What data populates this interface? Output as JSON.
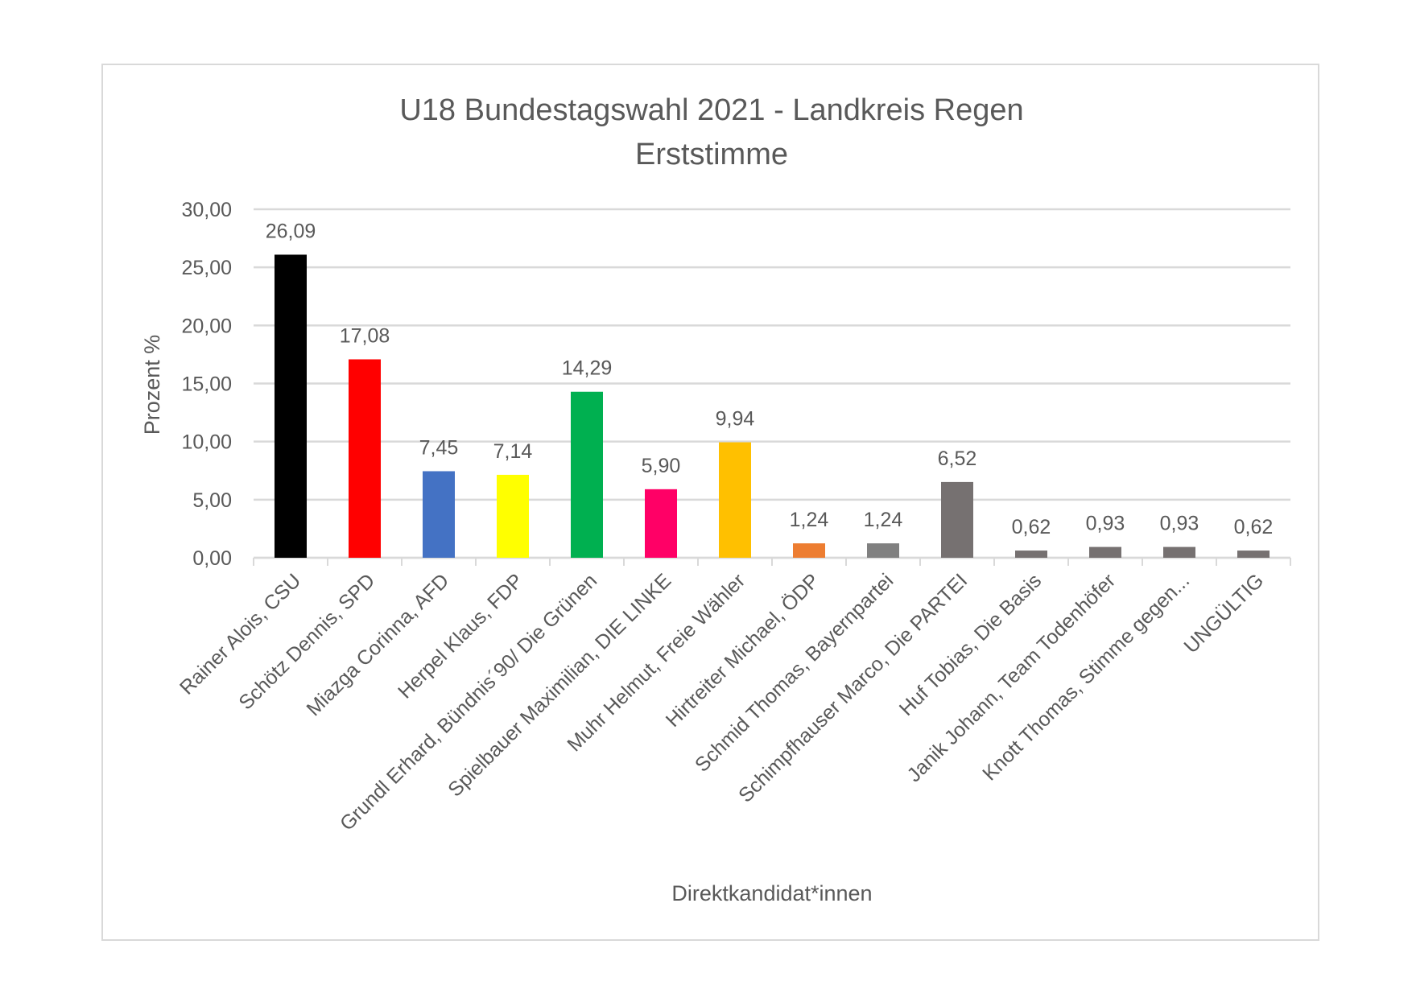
{
  "chart_data": {
    "type": "bar",
    "title": "U18 Bundestagswahl 2021 - Landkreis Regen",
    "subtitle": "Erststimme",
    "xlabel": "Direktkandidat*innen",
    "ylabel": "Prozent %",
    "ylim": [
      0,
      30
    ],
    "yticks": [
      "0,00",
      "5,00",
      "10,00",
      "15,00",
      "20,00",
      "25,00",
      "30,00"
    ],
    "grid": true,
    "legend": "none",
    "categories": [
      "Rainer Alois, CSU",
      "Schötz Dennis, SPD",
      "Miazga Corinna, AFD",
      "Herpel Klaus, FDP",
      "Grundl Erhard, Bündnis´90/ Die Grünen",
      "Spielbauer Maximilian, DIE LINKE",
      "Muhr Helmut, Freie Wähler",
      "Hirtreiter Michael, ÖDP",
      "Schmid Thomas, Bayernpartei",
      "Schimpfhauser Marco, Die PARTEI",
      "Huf Tobias, Die Basis",
      "Janik Johann, Team Todenhöfer",
      "Knott Thomas, Stimme gegen...",
      "UNGÜLTIG"
    ],
    "values": [
      26.09,
      17.08,
      7.45,
      7.14,
      14.29,
      5.9,
      9.94,
      1.24,
      1.24,
      6.52,
      0.62,
      0.93,
      0.93,
      0.62
    ],
    "data_labels": [
      "26,09",
      "17,08",
      "7,45",
      "7,14",
      "14,29",
      "5,90",
      "9,94",
      "1,24",
      "1,24",
      "6,52",
      "0,62",
      "0,93",
      "0,93",
      "0,62"
    ],
    "colors": [
      "#000000",
      "#FF0000",
      "#4472C4",
      "#FFFF00",
      "#00B050",
      "#FF0066",
      "#FFC000",
      "#ED7D31",
      "#808080",
      "#767171",
      "#767171",
      "#767171",
      "#767171",
      "#767171"
    ]
  }
}
